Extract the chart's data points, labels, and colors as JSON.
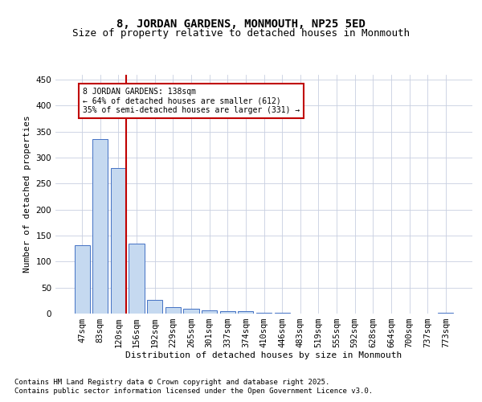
{
  "title": "8, JORDAN GARDENS, MONMOUTH, NP25 5ED",
  "subtitle": "Size of property relative to detached houses in Monmouth",
  "xlabel": "Distribution of detached houses by size in Monmouth",
  "ylabel": "Number of detached properties",
  "categories": [
    "47sqm",
    "83sqm",
    "120sqm",
    "156sqm",
    "192sqm",
    "229sqm",
    "265sqm",
    "301sqm",
    "337sqm",
    "374sqm",
    "410sqm",
    "446sqm",
    "483sqm",
    "519sqm",
    "555sqm",
    "592sqm",
    "628sqm",
    "664sqm",
    "700sqm",
    "737sqm",
    "773sqm"
  ],
  "values": [
    132,
    336,
    280,
    135,
    27,
    13,
    10,
    6,
    5,
    4,
    1,
    1,
    0,
    0,
    0,
    0,
    0,
    0,
    0,
    0,
    1
  ],
  "bar_color": "#c5d9f0",
  "bar_edge_color": "#4472c4",
  "subject_line_color": "#c00000",
  "annotation_text": "8 JORDAN GARDENS: 138sqm\n← 64% of detached houses are smaller (612)\n35% of semi-detached houses are larger (331) →",
  "annotation_box_color": "#c00000",
  "background_color": "#ffffff",
  "grid_color": "#c8cfe0",
  "ylim": [
    0,
    460
  ],
  "yticks": [
    0,
    50,
    100,
    150,
    200,
    250,
    300,
    350,
    400,
    450
  ],
  "footer_line1": "Contains HM Land Registry data © Crown copyright and database right 2025.",
  "footer_line2": "Contains public sector information licensed under the Open Government Licence v3.0.",
  "title_fontsize": 10,
  "subtitle_fontsize": 9,
  "axis_label_fontsize": 8,
  "tick_fontsize": 7.5,
  "annotation_fontsize": 7,
  "footer_fontsize": 6.5
}
